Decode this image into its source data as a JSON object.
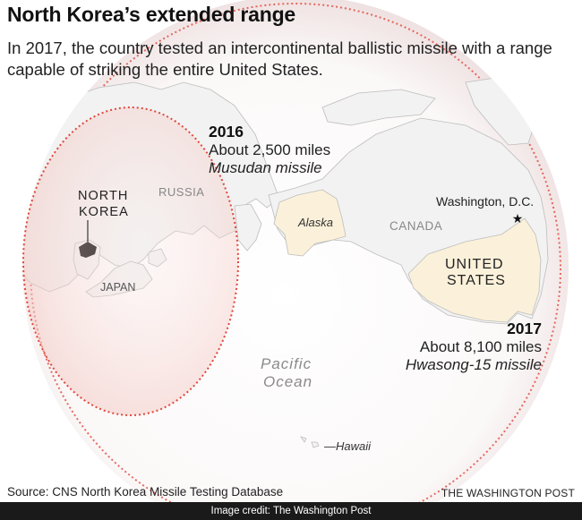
{
  "header": {
    "title": "North Korea’s extended range",
    "subtitle": "In 2017, the country tested an intercontinental ballistic missile with a range capable of striking the entire United States."
  },
  "map": {
    "labels": {
      "north_korea_line1": "NORTH",
      "north_korea_line2": "KOREA",
      "russia": "RUSSIA",
      "japan": "JAPAN",
      "alaska": "Alaska",
      "canada": "CANADA",
      "washington": "Washington, D.C.",
      "us_line1": "UNITED",
      "us_line2": "STATES",
      "ocean_line1": "Pacific",
      "ocean_line2": "Ocean",
      "hawaii": "—Hawaii"
    },
    "ranges": [
      {
        "year": "2016",
        "distance": "About 2,500 miles",
        "missile": "Musudan missile"
      },
      {
        "year": "2017",
        "distance": "About 8,100 miles",
        "missile": "Hwasong-15 missile"
      }
    ],
    "colors": {
      "ocean": "#ffffff",
      "land": "#f2f2f2",
      "land_edge": "#bdbdbd",
      "highlight_land": "#fbf1da",
      "north_korea": "#111111",
      "range_line": "#e0473b",
      "range_fill": "#f6d4cf"
    }
  },
  "footer": {
    "source": "Source: CNS North Korea Missile Testing Database",
    "brand": "THE WASHINGTON POST",
    "credit": "Image credit: The Washington Post"
  }
}
